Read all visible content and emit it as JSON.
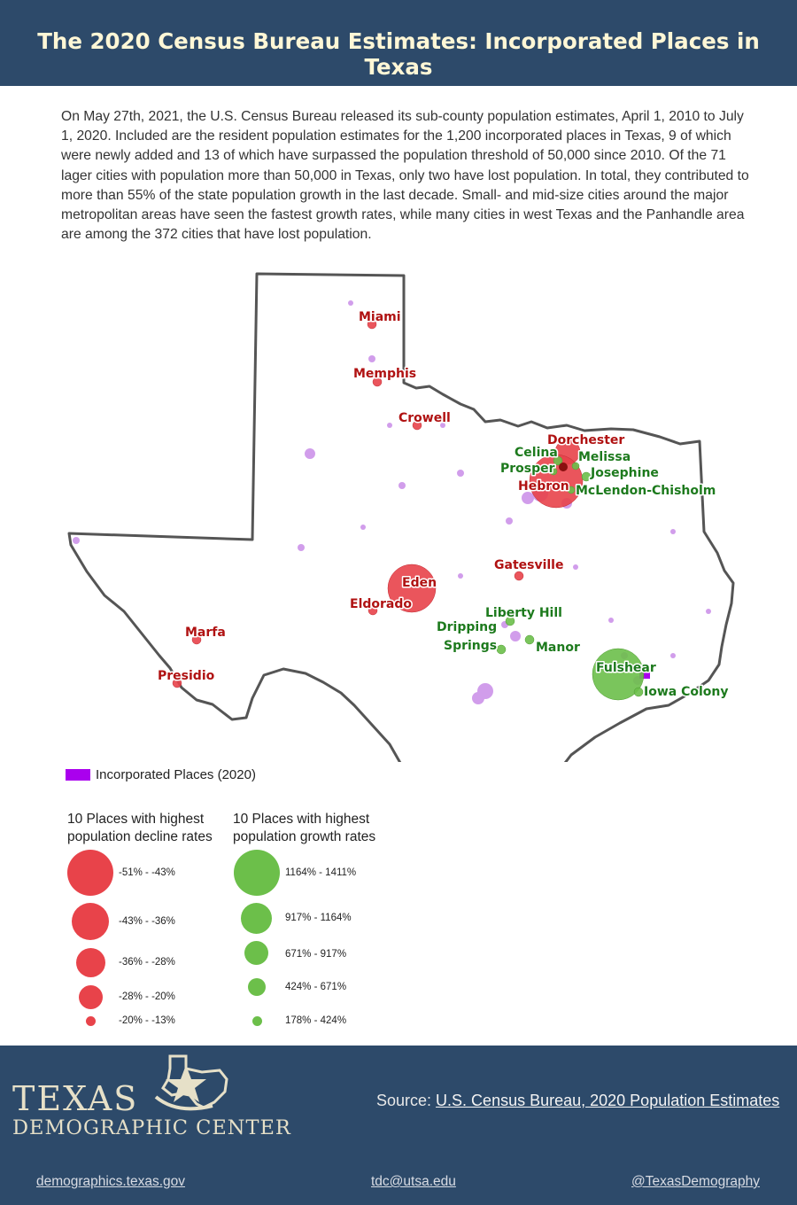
{
  "title": "The 2020 Census Bureau Estimates: Incorporated Places in Texas",
  "intro": "On May 27th, 2021, the U.S. Census Bureau released its sub-county population estimates, April 1, 2010 to July 1, 2020. Included are the resident population estimates for the 1,200 incorporated places in Texas,  9 of which were newly added and 13 of which have surpassed the population threshold of 50,000 since 2010. Of the 71 lager cities with population more than 50,000 in Texas, only two have lost population. In total, they contributed to more than 55% of the state population growth in the last decade. Small- and mid-size cities around the major metropolitan areas have seen the fastest growth rates, while many cities in west Texas and the Panhandle area are among the 372 cities that have lost population.",
  "colors": {
    "header_bg": "#2d4a6a",
    "decline": "#e8434a",
    "growth": "#6cbf4a",
    "incorporated": "#aa00ee",
    "state_outline": "#555555"
  },
  "map": {
    "decline_places": [
      {
        "name": "Miami"
      },
      {
        "name": "Memphis"
      },
      {
        "name": "Crowell"
      },
      {
        "name": "Dorchester"
      },
      {
        "name": "Hebron"
      },
      {
        "name": "Gatesville"
      },
      {
        "name": "Eden"
      },
      {
        "name": "Eldorado"
      },
      {
        "name": "Marfa"
      },
      {
        "name": "Presidio"
      }
    ],
    "growth_places": [
      {
        "name": "Celina"
      },
      {
        "name": "Melissa"
      },
      {
        "name": "Prosper"
      },
      {
        "name": "Josephine"
      },
      {
        "name": "McLendon-Chisholm"
      },
      {
        "name": "Liberty Hill"
      },
      {
        "name": "Dripping"
      },
      {
        "name": "Springs"
      },
      {
        "name": "Manor"
      },
      {
        "name": "Fulshear"
      },
      {
        "name": "Iowa Colony"
      }
    ]
  },
  "legend": {
    "incorporated_label": "Incorporated Places (2020)",
    "decline_title_line1": "10 Places with highest",
    "decline_title_line2": "population decline rates",
    "growth_title_line1": "10 Places with highest",
    "growth_title_line2": "population growth rates",
    "decline_classes": [
      "-51% - -43%",
      "-43% - -36%",
      "-36% - -28%",
      "-28% - -20%",
      "-20% - -13%"
    ],
    "growth_classes": [
      "1164% - 1411%",
      "917% - 1164%",
      "671% - 917%",
      "424% - 671%",
      "178% - 424%"
    ]
  },
  "footer": {
    "logo_line1": "TEXAS",
    "logo_line2": "DEMOGRAPHIC CENTER",
    "source_prefix": "Source: ",
    "source_link": "U.S. Census Bureau, 2020 Population Estimates",
    "website": "demographics.texas.gov",
    "email": "tdc@utsa.edu",
    "twitter": "@TexasDemography"
  }
}
